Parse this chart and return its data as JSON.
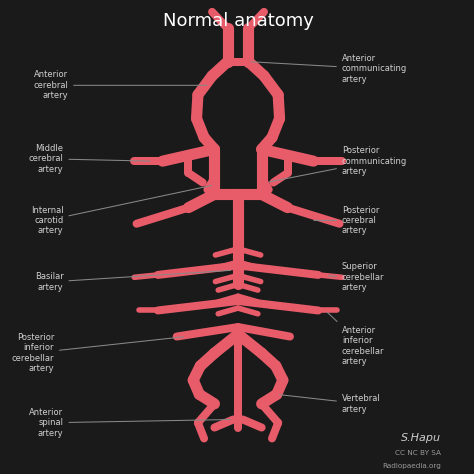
{
  "title": "Normal anatomy",
  "background_color": "#1a1a1a",
  "artery_color": "#e85c6a",
  "text_color": "#d0d0d0",
  "line_color": "#888888",
  "title_color": "#ffffff",
  "lw": 8,
  "signature": "S.Hapu",
  "license": "CC NC BY SA",
  "website": "Radiopaedia.org"
}
